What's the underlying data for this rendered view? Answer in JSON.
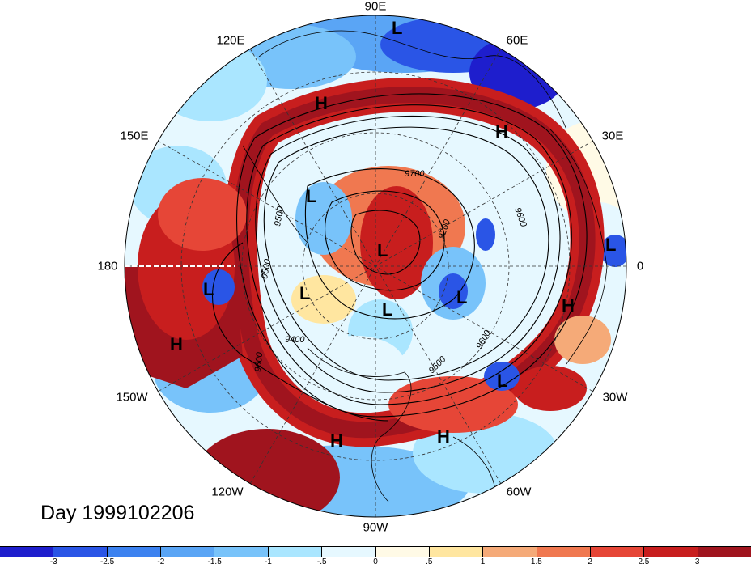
{
  "lon_labels": [
    {
      "text": "90E",
      "key": "n"
    },
    {
      "text": "60E",
      "key": "ne1"
    },
    {
      "text": "30E",
      "key": "ne2"
    },
    {
      "text": "0",
      "key": "e"
    },
    {
      "text": "30W",
      "key": "se2"
    },
    {
      "text": "60W",
      "key": "se1"
    },
    {
      "text": "90W",
      "key": "s"
    },
    {
      "text": "120W",
      "key": "sw1"
    },
    {
      "text": "150W",
      "key": "sw2"
    },
    {
      "text": "180",
      "key": "w"
    },
    {
      "text": "150E",
      "key": "nw2"
    },
    {
      "text": "120E",
      "key": "nw1"
    }
  ],
  "day_label": "Day 1999102206",
  "colorbar": {
    "colors": [
      "#1e1ecd",
      "#2a55e6",
      "#3c82f0",
      "#5aa5f5",
      "#78c3fa",
      "#aae6ff",
      "#e6f8ff",
      "#fffae6",
      "#ffe6a0",
      "#f5aa78",
      "#f07850",
      "#e64637",
      "#c81e1e",
      "#a0141e"
    ],
    "ticks": [
      "-3",
      "-2.5",
      "-2",
      "-1.5",
      "-1",
      "-.5",
      "0",
      ".5",
      "1",
      "1.5",
      "2",
      "2.5",
      "3"
    ]
  },
  "contour_labels": [
    "9700",
    "9600",
    "9500",
    "9400",
    "9600",
    "9500",
    "9200",
    "9600",
    "9500"
  ],
  "highs_lows": [
    {
      "t": "L",
      "key": "l1"
    },
    {
      "t": "H",
      "key": "h1"
    },
    {
      "t": "H",
      "key": "h2"
    },
    {
      "t": "L",
      "key": "l2"
    },
    {
      "t": "L",
      "key": "l3"
    },
    {
      "t": "L",
      "key": "l4"
    },
    {
      "t": "L",
      "key": "l5"
    },
    {
      "t": "L",
      "key": "l6"
    },
    {
      "t": "L",
      "key": "l7"
    },
    {
      "t": "L",
      "key": "l8"
    },
    {
      "t": "H",
      "key": "h3"
    },
    {
      "t": "H",
      "key": "h4"
    },
    {
      "t": "L",
      "key": "l9"
    },
    {
      "t": "H",
      "key": "h5"
    },
    {
      "t": "H",
      "key": "h6"
    }
  ],
  "colors": {
    "background": "#ffffff",
    "contour": "#000000",
    "grid": "#333333"
  }
}
